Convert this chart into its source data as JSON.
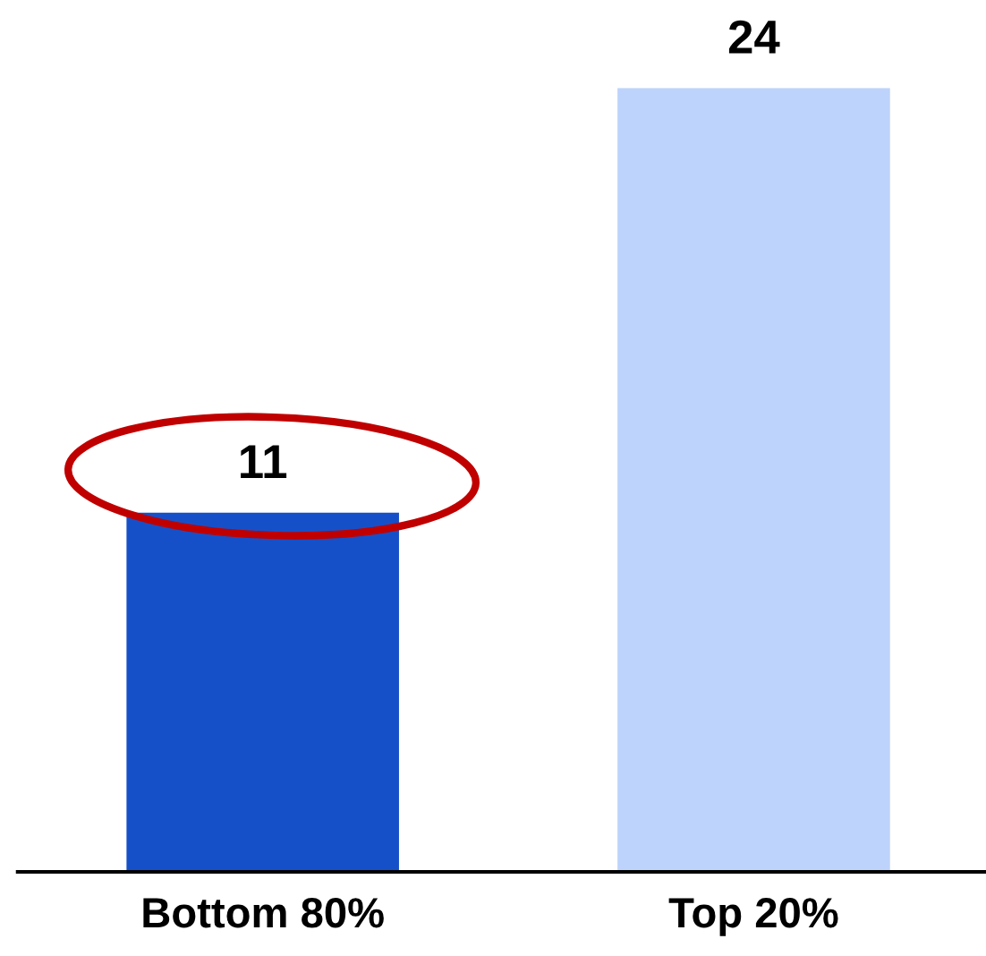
{
  "chart_data": {
    "type": "bar",
    "categories": [
      "Bottom 80%",
      "Top 20%"
    ],
    "values": [
      11,
      24
    ],
    "colors": [
      "#1650c8",
      "#bdd3fb"
    ],
    "ylim": [
      0,
      24
    ],
    "data_labels": true,
    "grid": false,
    "legend": false
  }
}
